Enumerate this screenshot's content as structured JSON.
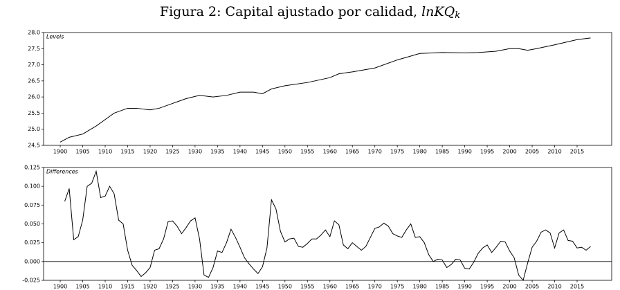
{
  "title": "Figura 2: Capital ajustado por calidad, ",
  "title_math": "lnKQ",
  "title_sub": "k",
  "chart_data": [
    {
      "type": "line",
      "label": "Levels",
      "color": "#000000",
      "x": [
        1900,
        1902,
        1905,
        1908,
        1910,
        1912,
        1915,
        1917,
        1920,
        1922,
        1925,
        1928,
        1931,
        1934,
        1937,
        1940,
        1943,
        1945,
        1947,
        1950,
        1955,
        1960,
        1962,
        1965,
        1970,
        1975,
        1980,
        1985,
        1990,
        1993,
        1997,
        2000,
        2002,
        2004,
        2006,
        2010,
        2015,
        2018
      ],
      "values": [
        24.6,
        24.75,
        24.85,
        25.1,
        25.3,
        25.5,
        25.65,
        25.65,
        25.6,
        25.65,
        25.8,
        25.95,
        26.05,
        26.0,
        26.05,
        26.15,
        26.15,
        26.1,
        26.25,
        26.35,
        26.45,
        26.6,
        26.72,
        26.78,
        26.9,
        27.15,
        27.35,
        27.38,
        27.37,
        27.38,
        27.42,
        27.5,
        27.5,
        27.45,
        27.5,
        27.62,
        27.78,
        27.83
      ],
      "xlim": [
        1896.3,
        2022.7
      ],
      "ylim": [
        24.5,
        28.0
      ],
      "xticks": [
        1900,
        1905,
        1910,
        1915,
        1920,
        1925,
        1930,
        1935,
        1940,
        1945,
        1950,
        1955,
        1960,
        1965,
        1970,
        1975,
        1980,
        1985,
        1990,
        1995,
        2000,
        2005,
        2010,
        2015
      ],
      "yticks": [
        24.5,
        {
          "value": 25,
          "label": "25.0"
        },
        25.5,
        {
          "value": 26,
          "label": "26.0"
        },
        26.5,
        {
          "value": 27,
          "label": "27.0"
        },
        27.5,
        {
          "value": 28,
          "label": "28.0"
        }
      ]
    },
    {
      "type": "line",
      "label": "Differences",
      "color": "#000000",
      "reference_line": 0,
      "x": [
        1901,
        1902,
        1903,
        1904,
        1905,
        1906,
        1907,
        1908,
        1909,
        1910,
        1911,
        1912,
        1913,
        1914,
        1915,
        1916,
        1917,
        1918,
        1919,
        1920,
        1921,
        1922,
        1923,
        1924,
        1925,
        1926,
        1927,
        1928,
        1929,
        1930,
        1931,
        1932,
        1933,
        1934,
        1935,
        1936,
        1937,
        1938,
        1939,
        1940,
        1941,
        1942,
        1943,
        1944,
        1945,
        1946,
        1947,
        1948,
        1949,
        1950,
        1951,
        1952,
        1953,
        1954,
        1955,
        1956,
        1957,
        1958,
        1959,
        1960,
        1961,
        1962,
        1963,
        1964,
        1965,
        1966,
        1967,
        1968,
        1969,
        1970,
        1971,
        1972,
        1973,
        1974,
        1975,
        1976,
        1977,
        1978,
        1979,
        1980,
        1981,
        1982,
        1983,
        1984,
        1985,
        1986,
        1987,
        1988,
        1989,
        1990,
        1991,
        1992,
        1993,
        1994,
        1995,
        1996,
        1997,
        1998,
        1999,
        2000,
        2001,
        2002,
        2003,
        2004,
        2005,
        2006,
        2007,
        2008,
        2009,
        2010,
        2011,
        2012,
        2013,
        2014,
        2015,
        2016,
        2017,
        2018
      ],
      "values": [
        0.08,
        0.097,
        0.029,
        0.033,
        0.055,
        0.1,
        0.104,
        0.12,
        0.085,
        0.087,
        0.1,
        0.09,
        0.055,
        0.05,
        0.015,
        -0.005,
        -0.012,
        -0.02,
        -0.015,
        -0.008,
        0.015,
        0.017,
        0.03,
        0.053,
        0.054,
        0.047,
        0.037,
        0.045,
        0.054,
        0.058,
        0.03,
        -0.018,
        -0.021,
        -0.008,
        0.014,
        0.012,
        0.025,
        0.043,
        0.032,
        0.019,
        0.005,
        -0.003,
        -0.01,
        -0.016,
        -0.007,
        0.018,
        0.082,
        0.07,
        0.04,
        0.026,
        0.03,
        0.031,
        0.02,
        0.019,
        0.024,
        0.03,
        0.03,
        0.035,
        0.042,
        0.033,
        0.054,
        0.049,
        0.022,
        0.017,
        0.025,
        0.02,
        0.015,
        0.02,
        0.032,
        0.044,
        0.046,
        0.051,
        0.047,
        0.037,
        0.034,
        0.032,
        0.042,
        0.05,
        0.032,
        0.033,
        0.025,
        0.009,
        0.0,
        0.003,
        0.002,
        -0.008,
        -0.004,
        0.003,
        0.002,
        -0.009,
        -0.01,
        -0.001,
        0.011,
        0.018,
        0.022,
        0.012,
        0.019,
        0.027,
        0.026,
        0.014,
        0.005,
        -0.018,
        -0.025,
        -0.002,
        0.019,
        0.027,
        0.039,
        0.042,
        0.038,
        0.018,
        0.038,
        0.042,
        0.028,
        0.027,
        0.018,
        0.019,
        0.015,
        0.02
      ],
      "xlim": [
        1896.3,
        2022.7
      ],
      "ylim": [
        -0.025,
        0.125
      ],
      "xticks": [
        1900,
        1905,
        1910,
        1915,
        1920,
        1925,
        1930,
        1935,
        1940,
        1945,
        1950,
        1955,
        1960,
        1965,
        1970,
        1975,
        1980,
        1985,
        1990,
        1995,
        2000,
        2005,
        2010,
        2015
      ],
      "yticks": [
        -0.025,
        {
          "value": 0,
          "label": "0.000"
        },
        0.025,
        {
          "value": 0.05,
          "label": "0.050"
        },
        0.075,
        {
          "value": 0.1,
          "label": "0.100"
        },
        0.125
      ]
    }
  ]
}
